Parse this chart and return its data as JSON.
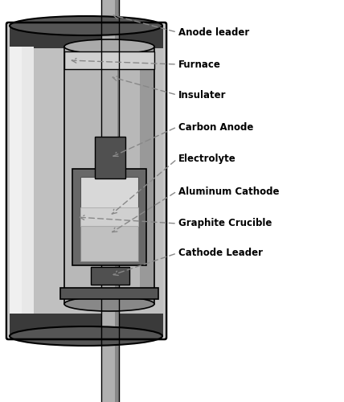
{
  "labels": [
    "Anode leader",
    "Furnace",
    "Insulater",
    "Carbon Anode",
    "Electrolyte",
    "Aluminum Cathode",
    "Graphite Crucible",
    "Cathode Leader"
  ],
  "colors": {
    "background": "#ffffff",
    "text": "#000000",
    "arrow": "#888888"
  }
}
